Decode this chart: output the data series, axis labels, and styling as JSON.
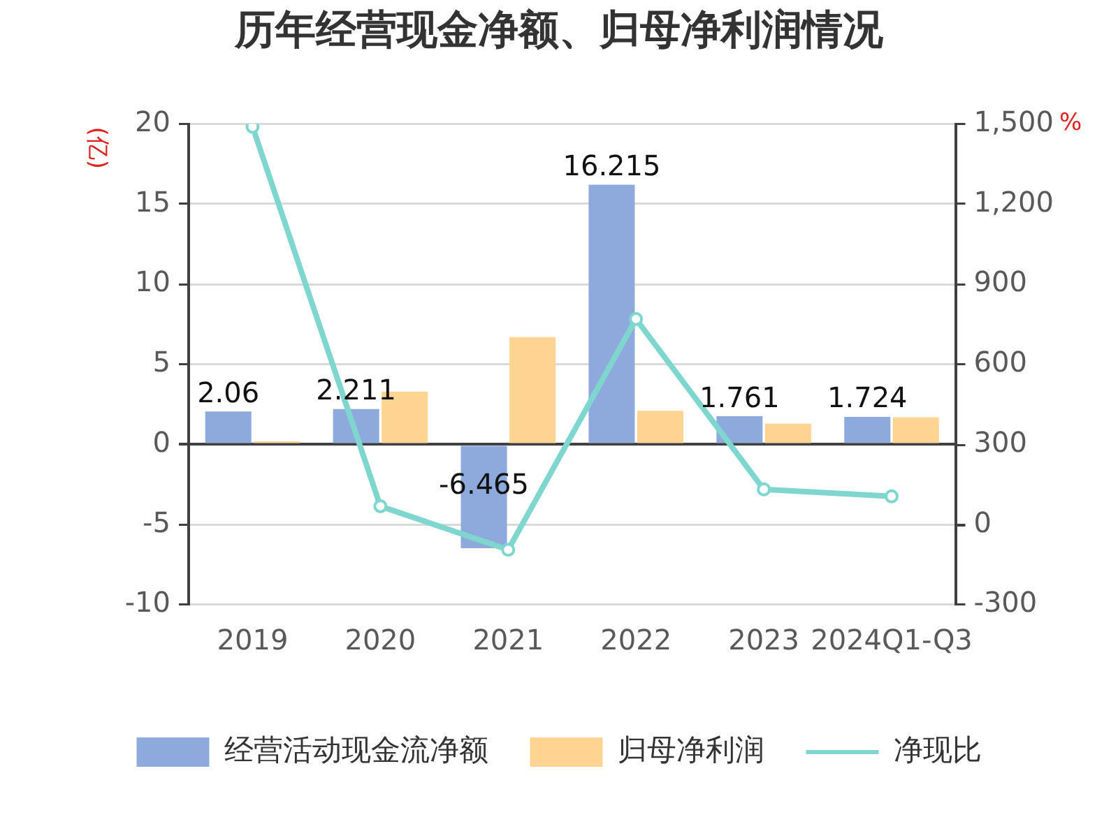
{
  "chart_data": {
    "type": "bar",
    "title": "历年经营现金净额、归母净利润情况",
    "ylabel": "(亿)",
    "y2label": "%",
    "categories": [
      "2019",
      "2020",
      "2021",
      "2022",
      "2023",
      "2024Q1-Q3"
    ],
    "series": [
      {
        "name": "经营活动现金流净额",
        "color": "#8eaadc",
        "values": [
          2.06,
          2.211,
          -6.465,
          16.215,
          1.761,
          1.724
        ],
        "value_labels": [
          "2.06",
          "2.211",
          "-6.465",
          "16.215",
          "1.761",
          "1.724"
        ]
      },
      {
        "name": "归母净利润",
        "color": "#ffd591",
        "values": [
          0.2,
          3.3,
          6.7,
          2.1,
          1.3,
          1.7
        ]
      },
      {
        "name": "净现比",
        "type": "line",
        "axis": "y2",
        "color": "#7fd6cf",
        "values": [
          1490,
          69,
          -94,
          770,
          132,
          106
        ]
      }
    ],
    "ylim": [
      -10,
      20
    ],
    "yticks": [
      -10,
      -5,
      0,
      5,
      10,
      15,
      20
    ],
    "y2lim": [
      -300,
      1500
    ],
    "y2ticks": [
      -300,
      0,
      300,
      600,
      900,
      {
        "value": 1200,
        "label": "1,200"
      },
      {
        "value": 1500,
        "label": "1,500"
      }
    ],
    "grid": "y",
    "legend": "bottom",
    "marker": "circle"
  }
}
